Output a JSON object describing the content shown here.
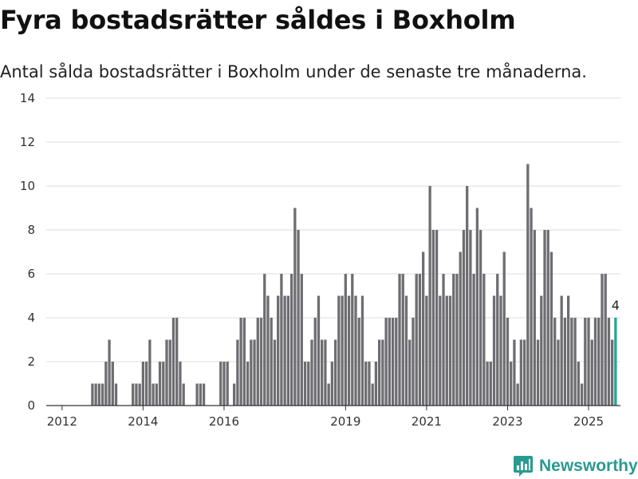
{
  "title": "Fyra bostadsrätter såldes i Boxholm",
  "subtitle": "Antal sålda bostadsrätter i Boxholm under de senaste tre månaderna.",
  "brand": {
    "name": "Newsworthy",
    "icon": "newsworthy-logo-icon",
    "color": "#2a9a91"
  },
  "chart_data": {
    "type": "bar",
    "title": "Fyra bostadsrätter såldes i Boxholm",
    "xlabel": "",
    "ylabel": "",
    "ylim": [
      0,
      14
    ],
    "yticks": [
      0,
      2,
      4,
      6,
      8,
      10,
      12,
      14
    ],
    "xticks": [
      {
        "label": "2012",
        "month": "2012-01"
      },
      {
        "label": "2014",
        "month": "2014-01"
      },
      {
        "label": "2016",
        "month": "2016-01"
      },
      {
        "label": "2019",
        "month": "2019-01"
      },
      {
        "label": "2021",
        "month": "2021-01"
      },
      {
        "label": "2023",
        "month": "2023-01"
      },
      {
        "label": "2025",
        "month": "2025-01"
      }
    ],
    "grid": true,
    "bar_color": "#6e6d72",
    "highlight_color": "#23a397",
    "series": [
      {
        "values": [
          {
            "x": "2011-10",
            "y": 0
          },
          {
            "x": "2011-11",
            "y": 0
          },
          {
            "x": "2011-12",
            "y": 0
          },
          {
            "x": "2012-01",
            "y": 0
          },
          {
            "x": "2012-02",
            "y": 0
          },
          {
            "x": "2012-03",
            "y": 0
          },
          {
            "x": "2012-04",
            "y": 0
          },
          {
            "x": "2012-05",
            "y": 0
          },
          {
            "x": "2012-06",
            "y": 0
          },
          {
            "x": "2012-07",
            "y": 0
          },
          {
            "x": "2012-08",
            "y": 0
          },
          {
            "x": "2012-09",
            "y": 0
          },
          {
            "x": "2012-10",
            "y": 1
          },
          {
            "x": "2012-11",
            "y": 1
          },
          {
            "x": "2012-12",
            "y": 1
          },
          {
            "x": "2013-01",
            "y": 1
          },
          {
            "x": "2013-02",
            "y": 2
          },
          {
            "x": "2013-03",
            "y": 3
          },
          {
            "x": "2013-04",
            "y": 2
          },
          {
            "x": "2013-05",
            "y": 1
          },
          {
            "x": "2013-06",
            "y": 0
          },
          {
            "x": "2013-07",
            "y": 0
          },
          {
            "x": "2013-08",
            "y": 0
          },
          {
            "x": "2013-09",
            "y": 0
          },
          {
            "x": "2013-10",
            "y": 1
          },
          {
            "x": "2013-11",
            "y": 1
          },
          {
            "x": "2013-12",
            "y": 1
          },
          {
            "x": "2014-01",
            "y": 2
          },
          {
            "x": "2014-02",
            "y": 2
          },
          {
            "x": "2014-03",
            "y": 3
          },
          {
            "x": "2014-04",
            "y": 1
          },
          {
            "x": "2014-05",
            "y": 1
          },
          {
            "x": "2014-06",
            "y": 2
          },
          {
            "x": "2014-07",
            "y": 2
          },
          {
            "x": "2014-08",
            "y": 3
          },
          {
            "x": "2014-09",
            "y": 3
          },
          {
            "x": "2014-10",
            "y": 4
          },
          {
            "x": "2014-11",
            "y": 4
          },
          {
            "x": "2014-12",
            "y": 2
          },
          {
            "x": "2015-01",
            "y": 1
          },
          {
            "x": "2015-02",
            "y": 0
          },
          {
            "x": "2015-03",
            "y": 0
          },
          {
            "x": "2015-04",
            "y": 0
          },
          {
            "x": "2015-05",
            "y": 1
          },
          {
            "x": "2015-06",
            "y": 1
          },
          {
            "x": "2015-07",
            "y": 1
          },
          {
            "x": "2015-08",
            "y": 0
          },
          {
            "x": "2015-09",
            "y": 0
          },
          {
            "x": "2015-10",
            "y": 0
          },
          {
            "x": "2015-11",
            "y": 0
          },
          {
            "x": "2015-12",
            "y": 2
          },
          {
            "x": "2016-01",
            "y": 2
          },
          {
            "x": "2016-02",
            "y": 2
          },
          {
            "x": "2016-03",
            "y": 0
          },
          {
            "x": "2016-04",
            "y": 1
          },
          {
            "x": "2016-05",
            "y": 3
          },
          {
            "x": "2016-06",
            "y": 4
          },
          {
            "x": "2016-07",
            "y": 4
          },
          {
            "x": "2016-08",
            "y": 2
          },
          {
            "x": "2016-09",
            "y": 3
          },
          {
            "x": "2016-10",
            "y": 3
          },
          {
            "x": "2016-11",
            "y": 4
          },
          {
            "x": "2016-12",
            "y": 4
          },
          {
            "x": "2017-01",
            "y": 6
          },
          {
            "x": "2017-02",
            "y": 5
          },
          {
            "x": "2017-03",
            "y": 4
          },
          {
            "x": "2017-04",
            "y": 3
          },
          {
            "x": "2017-05",
            "y": 5
          },
          {
            "x": "2017-06",
            "y": 6
          },
          {
            "x": "2017-07",
            "y": 5
          },
          {
            "x": "2017-08",
            "y": 5
          },
          {
            "x": "2017-09",
            "y": 6
          },
          {
            "x": "2017-10",
            "y": 9
          },
          {
            "x": "2017-11",
            "y": 8
          },
          {
            "x": "2017-12",
            "y": 6
          },
          {
            "x": "2018-01",
            "y": 2
          },
          {
            "x": "2018-02",
            "y": 2
          },
          {
            "x": "2018-03",
            "y": 3
          },
          {
            "x": "2018-04",
            "y": 4
          },
          {
            "x": "2018-05",
            "y": 5
          },
          {
            "x": "2018-06",
            "y": 3
          },
          {
            "x": "2018-07",
            "y": 3
          },
          {
            "x": "2018-08",
            "y": 1
          },
          {
            "x": "2018-09",
            "y": 2
          },
          {
            "x": "2018-10",
            "y": 3
          },
          {
            "x": "2018-11",
            "y": 5
          },
          {
            "x": "2018-12",
            "y": 5
          },
          {
            "x": "2019-01",
            "y": 6
          },
          {
            "x": "2019-02",
            "y": 5
          },
          {
            "x": "2019-03",
            "y": 6
          },
          {
            "x": "2019-04",
            "y": 5
          },
          {
            "x": "2019-05",
            "y": 4
          },
          {
            "x": "2019-06",
            "y": 5
          },
          {
            "x": "2019-07",
            "y": 2
          },
          {
            "x": "2019-08",
            "y": 2
          },
          {
            "x": "2019-09",
            "y": 1
          },
          {
            "x": "2019-10",
            "y": 2
          },
          {
            "x": "2019-11",
            "y": 3
          },
          {
            "x": "2019-12",
            "y": 3
          },
          {
            "x": "2020-01",
            "y": 4
          },
          {
            "x": "2020-02",
            "y": 4
          },
          {
            "x": "2020-03",
            "y": 4
          },
          {
            "x": "2020-04",
            "y": 4
          },
          {
            "x": "2020-05",
            "y": 6
          },
          {
            "x": "2020-06",
            "y": 6
          },
          {
            "x": "2020-07",
            "y": 5
          },
          {
            "x": "2020-08",
            "y": 3
          },
          {
            "x": "2020-09",
            "y": 4
          },
          {
            "x": "2020-10",
            "y": 6
          },
          {
            "x": "2020-11",
            "y": 6
          },
          {
            "x": "2020-12",
            "y": 7
          },
          {
            "x": "2021-01",
            "y": 5
          },
          {
            "x": "2021-02",
            "y": 10
          },
          {
            "x": "2021-03",
            "y": 8
          },
          {
            "x": "2021-04",
            "y": 8
          },
          {
            "x": "2021-05",
            "y": 5
          },
          {
            "x": "2021-06",
            "y": 6
          },
          {
            "x": "2021-07",
            "y": 5
          },
          {
            "x": "2021-08",
            "y": 5
          },
          {
            "x": "2021-09",
            "y": 6
          },
          {
            "x": "2021-10",
            "y": 6
          },
          {
            "x": "2021-11",
            "y": 7
          },
          {
            "x": "2021-12",
            "y": 8
          },
          {
            "x": "2022-01",
            "y": 10
          },
          {
            "x": "2022-02",
            "y": 8
          },
          {
            "x": "2022-03",
            "y": 6
          },
          {
            "x": "2022-04",
            "y": 9
          },
          {
            "x": "2022-05",
            "y": 8
          },
          {
            "x": "2022-06",
            "y": 6
          },
          {
            "x": "2022-07",
            "y": 2
          },
          {
            "x": "2022-08",
            "y": 2
          },
          {
            "x": "2022-09",
            "y": 5
          },
          {
            "x": "2022-10",
            "y": 6
          },
          {
            "x": "2022-11",
            "y": 5
          },
          {
            "x": "2022-12",
            "y": 7
          },
          {
            "x": "2023-01",
            "y": 4
          },
          {
            "x": "2023-02",
            "y": 2
          },
          {
            "x": "2023-03",
            "y": 3
          },
          {
            "x": "2023-04",
            "y": 1
          },
          {
            "x": "2023-05",
            "y": 3
          },
          {
            "x": "2023-06",
            "y": 3
          },
          {
            "x": "2023-07",
            "y": 11
          },
          {
            "x": "2023-08",
            "y": 9
          },
          {
            "x": "2023-09",
            "y": 8
          },
          {
            "x": "2023-10",
            "y": 3
          },
          {
            "x": "2023-11",
            "y": 5
          },
          {
            "x": "2023-12",
            "y": 8
          },
          {
            "x": "2024-01",
            "y": 8
          },
          {
            "x": "2024-02",
            "y": 7
          },
          {
            "x": "2024-03",
            "y": 4
          },
          {
            "x": "2024-04",
            "y": 3
          },
          {
            "x": "2024-05",
            "y": 5
          },
          {
            "x": "2024-06",
            "y": 4
          },
          {
            "x": "2024-07",
            "y": 5
          },
          {
            "x": "2024-08",
            "y": 4
          },
          {
            "x": "2024-09",
            "y": 4
          },
          {
            "x": "2024-10",
            "y": 2
          },
          {
            "x": "2024-11",
            "y": 1
          },
          {
            "x": "2024-12",
            "y": 4
          },
          {
            "x": "2025-01",
            "y": 4
          },
          {
            "x": "2025-02",
            "y": 3
          },
          {
            "x": "2025-03",
            "y": 4
          },
          {
            "x": "2025-04",
            "y": 4
          },
          {
            "x": "2025-05",
            "y": 6
          },
          {
            "x": "2025-06",
            "y": 6
          },
          {
            "x": "2025-07",
            "y": 4
          },
          {
            "x": "2025-08",
            "y": 3
          },
          {
            "x": "2025-09",
            "y": 4
          }
        ]
      }
    ],
    "annotations": [
      {
        "x": "2025-09",
        "text": "4"
      }
    ]
  }
}
